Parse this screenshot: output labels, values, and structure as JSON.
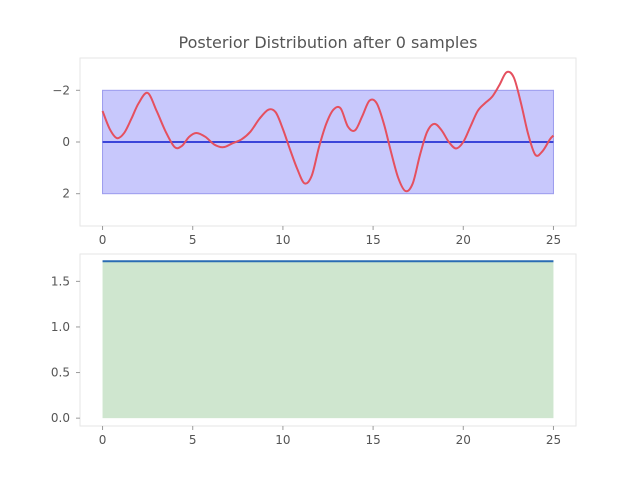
{
  "figure": {
    "title": "Posterior Distribution after 0 samples"
  },
  "colors": {
    "mean_line": "#3b45d9",
    "band_fill": "#c8c8fc",
    "band_edge": "#9a9aee",
    "sample_line": "#e5505f",
    "bottom_line": "#2a6cb3",
    "bottom_fill": "#cfe6cf"
  },
  "chart_data": [
    {
      "type": "line",
      "title": "Posterior Distribution after 0 samples",
      "xlim": [
        -1.25,
        26.25
      ],
      "ylim": [
        3.25,
        -3.25
      ],
      "y_inverted": true,
      "xticks": [
        0,
        5,
        10,
        15,
        20,
        25
      ],
      "xtick_labels": [
        "0",
        "5",
        "10",
        "15",
        "20",
        "25"
      ],
      "yticks": [
        -2,
        0,
        2
      ],
      "ytick_labels": [
        "−2",
        "0",
        "2"
      ],
      "grid": false,
      "band": {
        "x": [
          0,
          25
        ],
        "lower": [
          -2,
          -2
        ],
        "upper": [
          2,
          2
        ]
      },
      "series": [
        {
          "x": [
            0,
            25
          ],
          "y": [
            0,
            0
          ]
        },
        {
          "x": [
            0,
            0.4,
            0.8,
            1.2,
            1.6,
            2.0,
            2.5,
            3.0,
            3.5,
            4.0,
            4.4,
            4.8,
            5.2,
            5.7,
            6.2,
            6.7,
            7.2,
            7.7,
            8.2,
            8.7,
            9.2,
            9.6,
            10.0,
            10.4,
            10.8,
            11.2,
            11.6,
            12.0,
            12.4,
            12.8,
            13.2,
            13.6,
            14.0,
            14.4,
            14.8,
            15.2,
            15.6,
            16.0,
            16.4,
            16.8,
            17.2,
            17.6,
            18.0,
            18.4,
            18.8,
            19.2,
            19.6,
            20.0,
            20.4,
            20.8,
            21.2,
            21.6,
            22.0,
            22.4,
            22.8,
            23.2,
            23.6,
            24.0,
            24.4,
            24.8,
            25.0
          ],
          "y": [
            -1.2,
            -0.5,
            -0.15,
            -0.35,
            -0.9,
            -1.5,
            -1.9,
            -1.2,
            -0.4,
            0.2,
            0.15,
            -0.2,
            -0.35,
            -0.2,
            0.1,
            0.2,
            0.05,
            -0.1,
            -0.4,
            -0.9,
            -1.25,
            -1.15,
            -0.5,
            0.3,
            1.05,
            1.6,
            1.3,
            0.2,
            -0.7,
            -1.25,
            -1.3,
            -0.6,
            -0.45,
            -1.0,
            -1.6,
            -1.5,
            -0.7,
            0.4,
            1.4,
            1.9,
            1.6,
            0.5,
            -0.4,
            -0.7,
            -0.45,
            0.0,
            0.25,
            0.0,
            -0.6,
            -1.2,
            -1.5,
            -1.75,
            -2.2,
            -2.7,
            -2.5,
            -1.5,
            -0.3,
            0.5,
            0.35,
            -0.1,
            -0.25
          ]
        }
      ]
    },
    {
      "type": "area",
      "xlim": [
        -1.25,
        26.25
      ],
      "ylim": [
        -0.086,
        1.8
      ],
      "xticks": [
        0,
        5,
        10,
        15,
        20,
        25
      ],
      "xtick_labels": [
        "0",
        "5",
        "10",
        "15",
        "20",
        "25"
      ],
      "yticks": [
        0.0,
        0.5,
        1.0,
        1.5
      ],
      "ytick_labels": [
        "0.0",
        "0.5",
        "1.0",
        "1.5"
      ],
      "grid": false,
      "series": [
        {
          "x": [
            0,
            25
          ],
          "y": [
            1.72,
            1.72
          ]
        }
      ]
    }
  ]
}
